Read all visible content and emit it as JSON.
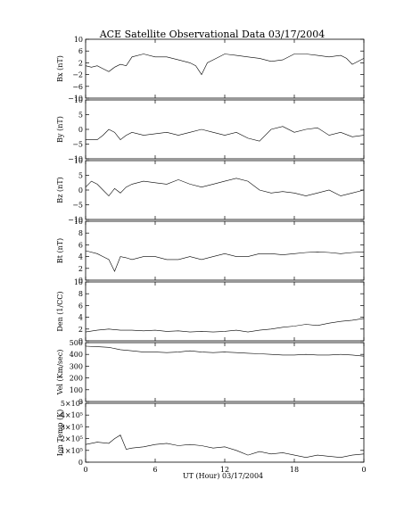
{
  "chart_data": {
    "type": "line",
    "title": "ACE Satellite Observational Data   03/17/2004",
    "xlabel": "UT (Hour)  03/17/2004",
    "x_ticks": [
      "0",
      "6",
      "12",
      "18",
      "0"
    ],
    "xlim": [
      0,
      24
    ],
    "grid": false,
    "panels": [
      {
        "ylabel": "Bx (nT)",
        "ylim": [
          -10,
          10
        ],
        "yticks": [
          {
            "v": 10,
            "t": "10"
          },
          {
            "v": 6,
            "t": "6"
          },
          {
            "v": 2,
            "t": "2"
          },
          {
            "v": -2,
            "t": "−2"
          },
          {
            "v": -6,
            "t": "−6"
          },
          {
            "v": -10,
            "t": "−10"
          }
        ],
        "x": [
          0,
          0.5,
          1,
          1.5,
          2,
          2.5,
          3,
          3.5,
          4,
          5,
          6,
          7,
          8,
          9,
          9.5,
          10,
          10.5,
          11,
          12,
          13,
          14,
          15,
          16,
          17,
          18,
          19,
          20,
          21,
          22,
          22.5,
          23,
          24
        ],
        "values": [
          1,
          0.5,
          1,
          0,
          -1,
          0.5,
          1.5,
          1,
          4,
          5,
          4,
          4,
          3,
          2,
          1,
          -2,
          2,
          3,
          5,
          4.5,
          4,
          3.5,
          2.5,
          3,
          5,
          5,
          4.5,
          4,
          4.5,
          3.5,
          1.5,
          3.5
        ]
      },
      {
        "ylabel": "By (nT)",
        "ylim": [
          -10,
          10
        ],
        "yticks": [
          {
            "v": 10,
            "t": "10"
          },
          {
            "v": 5,
            "t": "5"
          },
          {
            "v": 0,
            "t": "0"
          },
          {
            "v": -5,
            "t": "−5"
          },
          {
            "v": -10,
            "t": "−10"
          }
        ],
        "x": [
          0,
          1,
          1.5,
          2,
          2.5,
          3,
          3.5,
          4,
          5,
          6,
          7,
          8,
          9,
          10,
          11,
          12,
          13,
          14,
          15,
          16,
          17,
          18,
          19,
          20,
          21,
          22,
          23,
          24
        ],
        "values": [
          -3.5,
          -3.5,
          -2,
          0,
          -1,
          -3.5,
          -2,
          -1,
          -2,
          -1.5,
          -1,
          -2,
          -1,
          0,
          -1,
          -2,
          -1,
          -3,
          -4,
          0,
          1,
          -1,
          0,
          0.5,
          -2,
          -1,
          -2.5,
          -2
        ]
      },
      {
        "ylabel": "Bz (nT)",
        "ylim": [
          -10,
          10
        ],
        "yticks": [
          {
            "v": 10,
            "t": "10"
          },
          {
            "v": 5,
            "t": "5"
          },
          {
            "v": 0,
            "t": "0"
          },
          {
            "v": -5,
            "t": "−5"
          },
          {
            "v": -10,
            "t": "−10"
          }
        ],
        "x": [
          0,
          0.5,
          1,
          1.5,
          2,
          2.5,
          3,
          3.5,
          4,
          5,
          6,
          7,
          8,
          9,
          10,
          11,
          12,
          13,
          14,
          15,
          16,
          17,
          18,
          19,
          20,
          21,
          22,
          23,
          24
        ],
        "values": [
          1,
          3,
          2,
          0,
          -2,
          0.5,
          -1,
          1,
          2,
          3,
          2.5,
          2,
          3.5,
          2,
          1,
          2,
          3,
          4,
          3,
          0,
          -1,
          -0.5,
          -1,
          -2,
          -1,
          0,
          -2,
          -1,
          0
        ]
      },
      {
        "ylabel": "Bt (nT)",
        "ylim": [
          0,
          10
        ],
        "yticks": [
          {
            "v": 10,
            "t": "10"
          },
          {
            "v": 8,
            "t": "8"
          },
          {
            "v": 6,
            "t": "6"
          },
          {
            "v": 4,
            "t": "4"
          },
          {
            "v": 2,
            "t": "2"
          },
          {
            "v": 0,
            "t": "0"
          }
        ],
        "x": [
          0,
          1,
          1.5,
          2,
          2.5,
          3,
          3.5,
          4,
          5,
          6,
          7,
          8,
          9,
          10,
          11,
          12,
          13,
          14,
          15,
          16,
          17,
          18,
          19,
          20,
          21,
          22,
          23,
          24
        ],
        "values": [
          5,
          4.5,
          4,
          3.5,
          1.5,
          4,
          3.8,
          3.5,
          4,
          4,
          3.5,
          3.5,
          4,
          3.5,
          4,
          4.5,
          4,
          4,
          4.5,
          4.5,
          4.3,
          4.5,
          4.7,
          4.8,
          4.7,
          4.5,
          4.7,
          4.8
        ]
      },
      {
        "ylabel": "Den (1/CC)",
        "ylim": [
          0,
          10
        ],
        "yticks": [
          {
            "v": 10,
            "t": "10"
          },
          {
            "v": 8,
            "t": "8"
          },
          {
            "v": 6,
            "t": "6"
          },
          {
            "v": 4,
            "t": "4"
          },
          {
            "v": 2,
            "t": "2"
          },
          {
            "v": 0,
            "t": "0"
          }
        ],
        "x": [
          0,
          1,
          2,
          3,
          4,
          5,
          6,
          7,
          8,
          9,
          10,
          11,
          12,
          13,
          14,
          15,
          16,
          17,
          18,
          19,
          20,
          21,
          22,
          23,
          24
        ],
        "values": [
          1.5,
          1.8,
          2,
          1.8,
          1.8,
          1.7,
          1.8,
          1.6,
          1.7,
          1.5,
          1.6,
          1.5,
          1.6,
          1.8,
          1.5,
          1.8,
          2,
          2.3,
          2.5,
          2.8,
          2.6,
          3,
          3.3,
          3.5,
          3.8
        ]
      },
      {
        "ylabel": "Vel (Km/sec)",
        "ylim": [
          0,
          500
        ],
        "yticks": [
          {
            "v": 500,
            "t": "500"
          },
          {
            "v": 400,
            "t": "400"
          },
          {
            "v": 300,
            "t": "300"
          },
          {
            "v": 200,
            "t": "200"
          },
          {
            "v": 100,
            "t": "100"
          },
          {
            "v": 0,
            "t": "0"
          }
        ],
        "x": [
          0,
          1,
          2,
          3,
          4,
          5,
          6,
          7,
          8,
          9,
          10,
          11,
          12,
          13,
          14,
          15,
          16,
          17,
          18,
          19,
          20,
          21,
          22,
          23,
          24
        ],
        "values": [
          470,
          465,
          460,
          440,
          430,
          420,
          420,
          415,
          420,
          430,
          420,
          415,
          420,
          415,
          410,
          405,
          400,
          395,
          395,
          400,
          395,
          395,
          400,
          395,
          385
        ]
      },
      {
        "ylabel": "Ion Temp (K)",
        "ylim": [
          0,
          500000
        ],
        "yticks": [
          {
            "v": 500000,
            "t": "5×10⁵"
          },
          {
            "v": 400000,
            "t": "4×10⁵"
          },
          {
            "v": 300000,
            "t": "3×10⁵"
          },
          {
            "v": 200000,
            "t": "2×10⁵"
          },
          {
            "v": 100000,
            "t": "1×10⁵"
          },
          {
            "v": 0,
            "t": "0"
          }
        ],
        "x": [
          0,
          1,
          2,
          2.5,
          3,
          3.5,
          4,
          5,
          6,
          7,
          8,
          9,
          10,
          11,
          12,
          13,
          14,
          15,
          16,
          17,
          18,
          19,
          20,
          21,
          22,
          23,
          24
        ],
        "values": [
          150000,
          170000,
          160000,
          200000,
          230000,
          110000,
          120000,
          130000,
          150000,
          160000,
          140000,
          150000,
          140000,
          120000,
          130000,
          100000,
          60000,
          90000,
          70000,
          80000,
          60000,
          40000,
          60000,
          50000,
          40000,
          60000,
          70000
        ]
      }
    ]
  }
}
